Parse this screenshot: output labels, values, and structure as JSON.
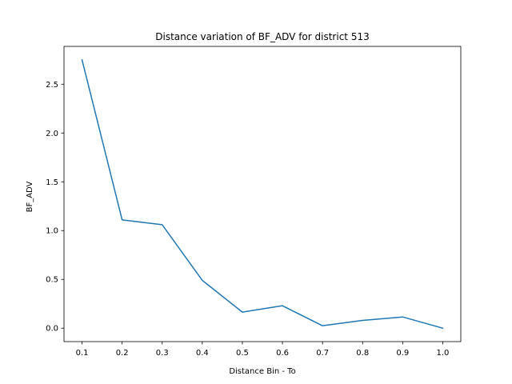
{
  "chart_data": {
    "type": "line",
    "title": "Distance variation of BF_ADV for district 513",
    "xlabel": "Distance Bin - To",
    "ylabel": "BF_ADV",
    "x": [
      0.1,
      0.2,
      0.3,
      0.4,
      0.5,
      0.6,
      0.7,
      0.8,
      0.9,
      1.0
    ],
    "x_tick_labels": [
      "0.1",
      "0.2",
      "0.3",
      "0.4",
      "0.5",
      "0.6",
      "0.7",
      "0.8",
      "0.9",
      "1.0"
    ],
    "y_ticks": [
      0.0,
      0.5,
      1.0,
      1.5,
      2.0,
      2.5
    ],
    "y_tick_labels": [
      "0.0",
      "0.5",
      "1.0",
      "1.5",
      "2.0",
      "2.5"
    ],
    "series": [
      {
        "values": [
          2.75,
          1.11,
          1.06,
          0.49,
          0.165,
          0.23,
          0.025,
          0.08,
          0.115,
          0.0
        ]
      }
    ],
    "xlim": [
      0.055,
      1.045
    ],
    "ylim": [
      -0.1375,
      2.8875
    ],
    "grid": false,
    "line_color": "#1f77b4"
  }
}
